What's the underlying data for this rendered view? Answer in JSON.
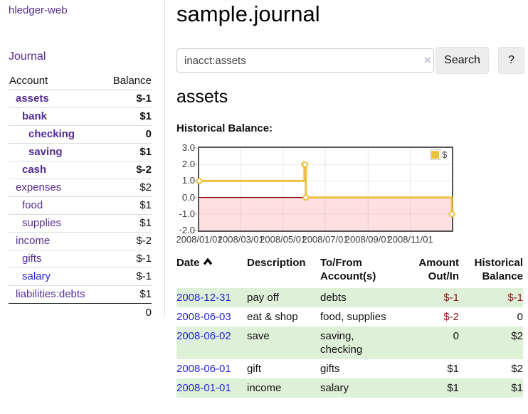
{
  "app": {
    "brand": "hledger-web",
    "nav_journal": "Journal"
  },
  "sidebar": {
    "headers": {
      "account": "Account",
      "balance": "Balance"
    },
    "accounts": [
      {
        "name": "assets",
        "balance": "$-1"
      },
      {
        "name": "bank",
        "balance": "$1"
      },
      {
        "name": "checking",
        "balance": "0"
      },
      {
        "name": "saving",
        "balance": "$1"
      },
      {
        "name": "cash",
        "balance": "$-2"
      },
      {
        "name": "expenses",
        "balance": "$2"
      },
      {
        "name": "food",
        "balance": "$1"
      },
      {
        "name": "supplies",
        "balance": "$1"
      },
      {
        "name": "income",
        "balance": "$-2"
      },
      {
        "name": "gifts",
        "balance": "$-1"
      },
      {
        "name": "salary",
        "balance": "$-1"
      },
      {
        "name": "liabilities:debts",
        "balance": "$1"
      }
    ],
    "total": "0"
  },
  "header": {
    "title": "sample.journal"
  },
  "search": {
    "value": "inacct:assets",
    "clear_icon": "×",
    "button_label": "Search",
    "help_label": "?"
  },
  "account_page": {
    "title": "assets",
    "chart_label": "Historical Balance:"
  },
  "chart_data": {
    "type": "line",
    "step": true,
    "title": "Historical Balance:",
    "x_range": [
      "2008-01-01",
      "2008-12-31"
    ],
    "ylim": [
      -2,
      3
    ],
    "yticks": [
      "3.0",
      "2.0",
      "1.0",
      "0.0",
      "-1.0",
      "-2.0"
    ],
    "ytick_values": [
      3,
      2,
      1,
      0,
      -1,
      -2
    ],
    "xticks": [
      "2008/01/01",
      "2008/03/01",
      "2008/05/01",
      "2008/07/01",
      "2008/09/01",
      "2008/11/01"
    ],
    "xtick_dates": [
      "2008-01-01",
      "2008-03-01",
      "2008-05-01",
      "2008-07-01",
      "2008-09-01",
      "2008-11-01"
    ],
    "grid": true,
    "legend": {
      "label": "$",
      "color": "#edc240",
      "position": "top-right"
    },
    "zero_line_color": "#8b0000",
    "negative_region_fill": "rgba(255,0,0,0.12)",
    "series": [
      {
        "name": "$",
        "color": "#edc240",
        "points": [
          {
            "date": "2008-01-01",
            "value": 1
          },
          {
            "date": "2008-06-01",
            "value": 2
          },
          {
            "date": "2008-06-02",
            "value": 2
          },
          {
            "date": "2008-06-03",
            "value": 0
          },
          {
            "date": "2008-12-31",
            "value": -1
          }
        ]
      }
    ]
  },
  "register": {
    "headers": {
      "date": "Date",
      "description": "Description",
      "account_line1": "To/From",
      "account_line2": "Account(s)",
      "amount_line1": "Amount",
      "amount_line2": "Out/In",
      "balance_line1": "Historical",
      "balance_line2": "Balance"
    },
    "rows": [
      {
        "date": "2008-12-31",
        "description": "pay off",
        "accounts": "debts",
        "amount": "$-1",
        "balance": "$-1"
      },
      {
        "date": "2008-06-03",
        "description": "eat & shop",
        "accounts": "food, supplies",
        "amount": "$-2",
        "balance": "0"
      },
      {
        "date": "2008-06-02",
        "description": "save",
        "accounts": "saving, checking",
        "amount": "0",
        "balance": "$2"
      },
      {
        "date": "2008-06-01",
        "description": "gift",
        "accounts": "gifts",
        "amount": "$1",
        "balance": "$2"
      },
      {
        "date": "2008-01-01",
        "description": "income",
        "accounts": "salary",
        "amount": "$1",
        "balance": "$1"
      }
    ]
  }
}
